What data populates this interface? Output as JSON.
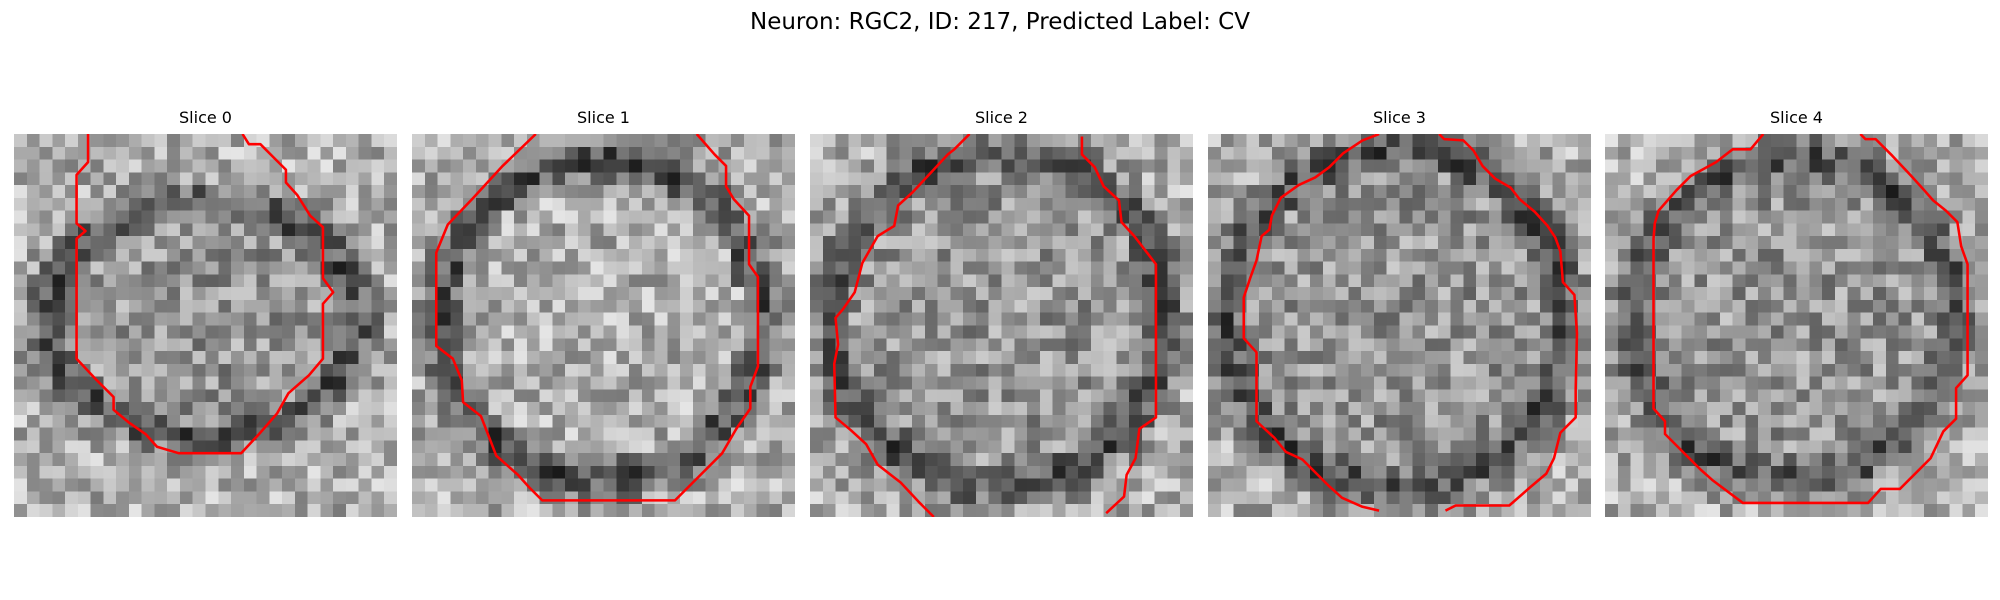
{
  "figure": {
    "title": "Neuron: RGC2, ID: 217, Predicted Label: CV",
    "contour_color": "#ff0000"
  },
  "panels": [
    {
      "title": "Slice 0"
    },
    {
      "title": "Slice 1"
    },
    {
      "title": "Slice 2"
    },
    {
      "title": "Slice 3"
    },
    {
      "title": "Slice 4"
    }
  ]
}
